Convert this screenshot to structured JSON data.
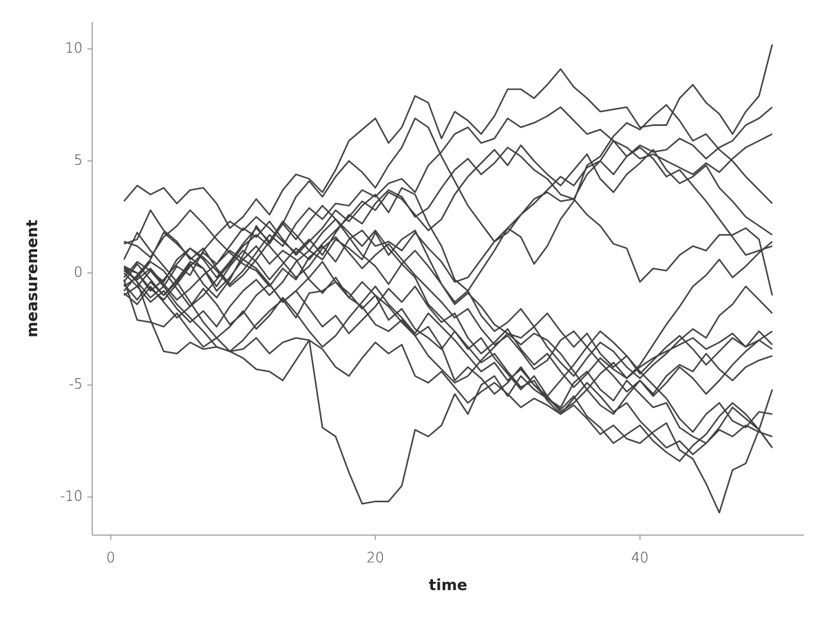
{
  "chart_data": {
    "type": "line",
    "x_label": "time",
    "y_label": "measurement",
    "color": "#404040",
    "x": [
      1,
      2,
      3,
      4,
      5,
      6,
      7,
      8,
      9,
      10,
      11,
      12,
      13,
      14,
      15,
      16,
      17,
      18,
      19,
      20,
      21,
      22,
      23,
      24,
      25,
      26,
      27,
      28,
      29,
      30,
      31,
      32,
      33,
      34,
      35,
      36,
      37,
      38,
      39,
      40,
      41,
      42,
      43,
      44,
      45,
      46,
      47,
      48,
      49,
      50
    ],
    "xlim": [
      -1.4,
      52.4
    ],
    "xticks": [
      0,
      20,
      40
    ],
    "ylim": [
      -11.7,
      11.2
    ],
    "yticks": [
      -10,
      -5,
      0,
      5,
      10
    ],
    "grid": false,
    "series": [
      {
        "values": [
          3.2,
          3.9,
          3.5,
          3.8,
          3.1,
          3.7,
          3.8,
          3.1,
          2.0,
          2.5,
          3.3,
          2.6,
          3.7,
          4.4,
          4.2,
          3.6,
          4.6,
          5.9,
          6.4,
          6.9,
          5.8,
          6.5,
          7.9,
          7.6,
          6.0,
          7.2,
          6.8,
          6.2,
          7.0,
          8.2,
          8.2,
          7.8,
          8.4,
          9.1,
          8.3,
          7.8,
          7.2,
          7.3,
          7.4,
          6.5,
          6.6,
          6.6,
          7.8,
          8.4,
          7.6,
          7.1,
          6.2,
          7.2,
          7.9,
          10.2
        ]
      },
      {
        "values": [
          0.2,
          -0.4,
          -1.1,
          -0.6,
          -1.4,
          -2.0,
          -2.6,
          -3.3,
          -3.5,
          -3.4,
          -2.9,
          -3.6,
          -3.1,
          -2.9,
          -3.0,
          -6.9,
          -7.3,
          -8.9,
          -10.3,
          -10.2,
          -10.2,
          -9.5,
          -7.0,
          -7.3,
          -6.8,
          -5.4,
          -6.3,
          -5.0,
          -4.6,
          -5.5,
          -4.6,
          -5.2,
          -5.6,
          -6.0,
          -4.9,
          -4.4,
          -5.2,
          -5.7,
          -4.8,
          -5.4,
          -6.0,
          -5.8,
          -6.9,
          -7.3,
          -7.6,
          -6.9,
          -6.0,
          -6.5,
          -7.0,
          -7.8
        ]
      },
      {
        "values": [
          -0.5,
          -1.2,
          -0.4,
          -1.0,
          -0.3,
          0.5,
          0.2,
          -0.8,
          -0.2,
          0.6,
          1.2,
          0.4,
          1.0,
          0.6,
          -0.3,
          -0.9,
          -0.2,
          -1.1,
          -0.4,
          -1.0,
          -2.1,
          -1.6,
          -2.5,
          -2.9,
          -3.4,
          -2.6,
          -3.3,
          -4.0,
          -3.6,
          -4.4,
          -5.1,
          -4.8,
          -5.7,
          -6.3,
          -5.9,
          -6.5,
          -7.2,
          -6.8,
          -7.4,
          -7.6,
          -7.1,
          -6.7,
          -7.9,
          -8.3,
          -9.4,
          -10.7,
          -8.8,
          -8.5,
          -7.0,
          -5.2
        ]
      },
      {
        "values": [
          1.3,
          1.5,
          2.8,
          1.9,
          1.4,
          0.6,
          1.1,
          0.2,
          -0.5,
          0.1,
          0.9,
          1.7,
          1.2,
          2.2,
          2.9,
          2.4,
          3.1,
          3.0,
          3.7,
          3.4,
          4.0,
          4.2,
          3.6,
          4.8,
          5.4,
          6.2,
          6.5,
          5.8,
          6.0,
          6.9,
          6.5,
          6.7,
          7.0,
          7.4,
          6.8,
          6.2,
          6.4,
          5.9,
          5.2,
          5.7,
          5.4,
          5.5,
          6.0,
          5.7,
          5.1,
          5.6,
          5.9,
          6.6,
          6.9,
          7.4
        ]
      },
      {
        "values": [
          -0.2,
          0.5,
          0.1,
          -0.6,
          0.3,
          -0.1,
          1.0,
          1.7,
          2.3,
          1.9,
          2.5,
          2.0,
          1.4,
          0.9,
          1.5,
          0.8,
          1.8,
          2.6,
          2.2,
          3.1,
          3.7,
          3.4,
          2.5,
          2.9,
          3.8,
          4.6,
          5.1,
          4.4,
          4.9,
          5.6,
          5.2,
          4.6,
          4.2,
          3.5,
          3.3,
          4.4,
          5.0,
          5.9,
          5.6,
          5.1,
          5.3,
          5.0,
          4.7,
          4.4,
          4.9,
          4.5,
          5.1,
          5.6,
          5.9,
          6.2
        ]
      },
      {
        "values": [
          0.6,
          1.8,
          1.0,
          0.3,
          -0.4,
          0.4,
          -0.5,
          -1.1,
          -0.3,
          0.8,
          2.1,
          1.3,
          2.2,
          3.4,
          4.1,
          3.4,
          4.3,
          5.0,
          4.5,
          3.8,
          4.8,
          5.6,
          6.9,
          6.5,
          5.2,
          4.1,
          3.0,
          2.2,
          1.4,
          2.0,
          1.6,
          0.4,
          1.2,
          2.4,
          3.2,
          4.8,
          5.2,
          6.1,
          6.7,
          6.4,
          7.0,
          7.5,
          6.8,
          5.9,
          6.2,
          5.5,
          5.0,
          4.3,
          3.7,
          3.1
        ]
      },
      {
        "values": [
          -0.8,
          -0.1,
          0.6,
          1.8,
          1.3,
          0.7,
          0.2,
          -0.6,
          0.3,
          1.0,
          0.5,
          -0.3,
          0.4,
          1.1,
          0.6,
          1.3,
          1.9,
          2.5,
          3.2,
          2.8,
          3.6,
          3.3,
          2.6,
          1.9,
          2.4,
          3.5,
          4.3,
          4.9,
          5.5,
          4.8,
          5.7,
          5.0,
          4.4,
          3.9,
          4.6,
          5.3,
          4.2,
          3.6,
          4.4,
          4.9,
          5.5,
          4.6,
          4.0,
          4.3,
          4.8,
          3.8,
          3.2,
          2.5,
          2.1,
          1.7
        ]
      },
      {
        "values": [
          0.3,
          0.0,
          -0.7,
          -1.2,
          -0.5,
          0.3,
          0.9,
          0.4,
          1.2,
          2.0,
          1.6,
          2.3,
          1.5,
          0.8,
          1.4,
          2.0,
          2.8,
          2.3,
          3.0,
          3.5,
          2.7,
          3.8,
          3.5,
          2.2,
          1.2,
          -0.3,
          -0.8,
          0.1,
          1.0,
          2.0,
          2.6,
          3.1,
          3.7,
          4.3,
          3.9,
          4.7,
          5.0,
          4.4,
          5.2,
          5.6,
          5.1,
          4.3,
          4.6,
          3.9,
          3.2,
          2.4,
          1.6,
          0.8,
          1.0,
          1.2
        ]
      },
      {
        "values": [
          1.4,
          1.2,
          0.7,
          1.6,
          2.1,
          2.8,
          2.2,
          1.5,
          0.9,
          0.4,
          0.1,
          -0.6,
          0.2,
          -0.3,
          0.7,
          1.2,
          0.5,
          1.5,
          1.9,
          1.2,
          1.4,
          1.0,
          1.8,
          1.1,
          0.5,
          -0.4,
          -0.2,
          0.6,
          1.4,
          1.8,
          2.6,
          3.3,
          3.6,
          3.2,
          3.3,
          2.6,
          2.1,
          1.3,
          1.1,
          -0.4,
          0.2,
          0.1,
          0.8,
          1.2,
          1.0,
          1.7,
          1.7,
          2.0,
          1.5,
          -1.0
        ]
      },
      {
        "values": [
          0.0,
          -0.6,
          -1.3,
          -0.8,
          -1.6,
          -2.2,
          -1.7,
          -2.4,
          -1.5,
          -0.8,
          -0.3,
          -1.0,
          -0.4,
          0.5,
          1.0,
          0.6,
          1.5,
          1.1,
          0.6,
          1.8,
          0.8,
          1.5,
          1.9,
          0.7,
          -0.5,
          -1.4,
          -0.9,
          -1.5,
          -2.3,
          -2.7,
          -2.9,
          -2.4,
          -3.3,
          -4.0,
          -4.6,
          -3.8,
          -3.1,
          -3.5,
          -4.2,
          -4.7,
          -4.1,
          -3.6,
          -3.0,
          -2.5,
          -2.9,
          -1.9,
          -1.4,
          -0.6,
          -1.2,
          -1.8
        ]
      },
      {
        "values": [
          -0.3,
          -2.1,
          -2.2,
          -2.4,
          -1.8,
          -2.6,
          -3.3,
          -2.9,
          -3.5,
          -3.0,
          -2.3,
          -1.7,
          -1.2,
          -2.0,
          -0.9,
          -0.8,
          -0.4,
          -1.1,
          -1.5,
          -2.3,
          -2.6,
          -2.1,
          -2.8,
          -3.7,
          -4.3,
          -4.9,
          -4.6,
          -3.9,
          -3.3,
          -2.7,
          -3.2,
          -2.7,
          -3.0,
          -3.6,
          -4.4,
          -5.2,
          -4.5,
          -4.0,
          -4.7,
          -4.2,
          -3.8,
          -3.5,
          -3.2,
          -2.9,
          -3.4,
          -3.1,
          -2.7,
          -3.3,
          -2.6,
          -3.2
        ]
      },
      {
        "values": [
          0.1,
          -0.3,
          0.2,
          -0.5,
          -1.2,
          -0.7,
          -0.1,
          0.4,
          1.0,
          0.6,
          0.2,
          -0.5,
          -1.3,
          -0.8,
          -0.2,
          0.5,
          -0.4,
          -0.9,
          -1.6,
          -1.0,
          -1.5,
          -2.2,
          -2.8,
          -2.4,
          -3.3,
          -4.8,
          -4.2,
          -4.7,
          -5.4,
          -4.9,
          -4.2,
          -5.0,
          -5.5,
          -6.2,
          -5.8,
          -5.2,
          -5.9,
          -6.3,
          -5.5,
          -4.8,
          -5.4,
          -4.6,
          -4.1,
          -4.4,
          -3.6,
          -4.3,
          -4.8,
          -4.2,
          -3.9,
          -3.7
        ]
      },
      {
        "values": [
          -1.0,
          -0.6,
          0.1,
          -0.4,
          0.6,
          1.1,
          0.6,
          -0.2,
          0.5,
          1.3,
          2.0,
          1.4,
          2.3,
          1.7,
          1.0,
          1.8,
          2.4,
          1.6,
          0.8,
          0.3,
          -0.5,
          0.4,
          -0.2,
          -1.4,
          -2.0,
          -2.6,
          -3.4,
          -2.9,
          -3.8,
          -4.5,
          -5.2,
          -4.6,
          -5.5,
          -4.8,
          -4.1,
          -3.3,
          -2.6,
          -3.1,
          -3.7,
          -4.4,
          -5.0,
          -5.6,
          -6.5,
          -7.1,
          -6.3,
          -5.8,
          -6.6,
          -6.9,
          -6.2,
          -6.3
        ]
      },
      {
        "values": [
          0.3,
          -0.4,
          -2.1,
          -3.5,
          -3.6,
          -3.1,
          -3.4,
          -3.3,
          -3.5,
          -3.8,
          -4.3,
          -4.4,
          -4.8,
          -3.9,
          -3.0,
          -3.4,
          -4.2,
          -4.6,
          -3.8,
          -3.1,
          -3.6,
          -3.2,
          -4.6,
          -4.9,
          -4.4,
          -5.1,
          -5.8,
          -5.3,
          -4.9,
          -5.4,
          -6.0,
          -5.6,
          -5.9,
          -6.3,
          -5.6,
          -4.9,
          -5.5,
          -6.2,
          -5.8,
          -6.6,
          -7.2,
          -7.8,
          -7.5,
          -8.1,
          -7.6,
          -7.0,
          -7.3,
          -6.8,
          -7.1,
          -7.3
        ]
      },
      {
        "values": [
          -0.4,
          0.4,
          -0.3,
          -1.0,
          -0.4,
          -1.3,
          -2.2,
          -2.9,
          -2.4,
          -1.7,
          -2.5,
          -1.9,
          -1.1,
          -1.8,
          -2.6,
          -3.3,
          -2.8,
          -2.0,
          -1.3,
          -0.6,
          -1.4,
          -2.0,
          -2.7,
          -1.8,
          -2.4,
          -3.0,
          -3.7,
          -4.4,
          -4.0,
          -4.8,
          -4.3,
          -5.0,
          -5.6,
          -6.1,
          -5.5,
          -6.4,
          -6.9,
          -7.6,
          -7.2,
          -6.8,
          -7.5,
          -8.0,
          -8.4,
          -7.7,
          -7.2,
          -6.4,
          -5.8,
          -6.3,
          -7.0,
          -7.8
        ]
      },
      {
        "values": [
          -0.9,
          -1.4,
          -0.6,
          -1.3,
          -2.0,
          -1.5,
          -0.7,
          -1.4,
          -2.3,
          -1.8,
          -1.0,
          -0.5,
          -1.3,
          -0.8,
          -1.6,
          -2.4,
          -1.9,
          -2.7,
          -2.1,
          -1.5,
          -0.7,
          -1.3,
          -0.6,
          -1.5,
          -2.2,
          -1.8,
          -2.9,
          -3.6,
          -3.1,
          -2.5,
          -3.4,
          -4.1,
          -3.6,
          -4.4,
          -5.1,
          -4.5,
          -3.8,
          -4.3,
          -4.7,
          -4.1,
          -3.2,
          -2.3,
          -1.5,
          -0.6,
          -0.1,
          0.6,
          -0.2,
          0.3,
          0.9,
          1.4
        ]
      },
      {
        "values": [
          0.2,
          0.0,
          -0.8,
          -0.3,
          0.4,
          1.1,
          0.7,
          0.1,
          -0.6,
          -0.1,
          0.6,
          1.4,
          2.2,
          1.5,
          2.3,
          3.0,
          2.4,
          1.8,
          1.2,
          1.9,
          1.1,
          0.4,
          1.0,
          0.3,
          -0.5,
          -1.3,
          -0.8,
          -1.9,
          -2.6,
          -2.2,
          -1.6,
          -2.4,
          -1.8,
          -2.6,
          -3.3,
          -2.7,
          -3.6,
          -4.2,
          -3.7,
          -4.5,
          -3.9,
          -3.3,
          -2.8,
          -3.4,
          -4.1,
          -3.5,
          -2.9,
          -3.3,
          -3.0,
          -3.4
        ]
      },
      {
        "values": [
          -0.6,
          -0.2,
          0.5,
          0.1,
          -0.7,
          -1.5,
          -1.0,
          -0.3,
          0.4,
          1.2,
          1.7,
          1.2,
          0.5,
          -0.2,
          0.3,
          1.1,
          1.6,
          0.9,
          0.2,
          0.8,
          1.3,
          0.6,
          -0.1,
          -0.7,
          -1.3,
          -2.0,
          -1.6,
          -2.5,
          -3.2,
          -2.8,
          -3.5,
          -4.3,
          -3.9,
          -3.0,
          -2.6,
          -3.3,
          -4.0,
          -4.6,
          -5.3,
          -4.8,
          -5.5,
          -4.9,
          -4.2,
          -4.7,
          -5.4,
          -4.8,
          -4.1,
          -3.5,
          -3.0,
          -2.6
        ]
      }
    ]
  }
}
